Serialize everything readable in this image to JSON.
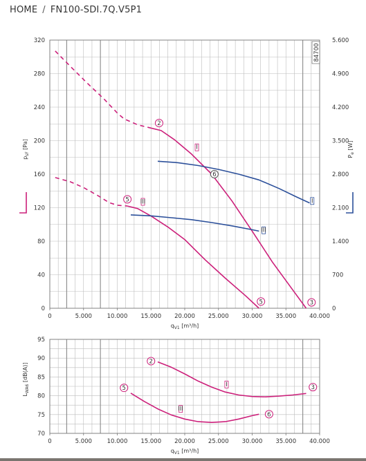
{
  "breadcrumb": {
    "home": "HOME",
    "separator": "/",
    "current": "FN100-SDI.7Q.V5P1"
  },
  "colors": {
    "pressure": "#cc1f7a",
    "power": "#2b4f9a",
    "grid": "#bcbcbc",
    "grid_heavy": "#8a8a8a"
  },
  "chart_data": [
    {
      "type": "line",
      "name": "pressure-power",
      "xlabel": "q",
      "xlabel_sub": "V1",
      "xlabel_unit": " [m³/h]",
      "ylabel": "p",
      "ylabel_sub": "sF",
      "ylabel_unit": " [Pa]",
      "y2label": "P",
      "y2label_sub": "e",
      "y2label_unit": " [W]",
      "xlim": [
        0,
        40000
      ],
      "ylim": [
        0,
        320
      ],
      "y2lim": [
        0,
        5600
      ],
      "x_ticks": [
        0,
        5000,
        10000,
        15000,
        20000,
        25000,
        30000,
        35000,
        40000
      ],
      "x_tick_labels": [
        "0",
        "5.000",
        "10.000",
        "15.000",
        "20.000",
        "25.000",
        "30.000",
        "35.000",
        "40.000"
      ],
      "y_ticks": [
        0,
        40,
        80,
        120,
        160,
        200,
        240,
        280,
        320
      ],
      "y_tick_labels": [
        "0",
        "40",
        "80",
        "120",
        "160",
        "200",
        "240",
        "280",
        "320"
      ],
      "y2_ticks": [
        0,
        700,
        1400,
        2100,
        2800,
        3500,
        4200,
        4900,
        5600
      ],
      "y2_tick_labels": [
        "0",
        "700",
        "1.400",
        "2.100",
        "2.800",
        "3.500",
        "4.200",
        "4.900",
        "5.600"
      ],
      "heavy_gridlines_x": [
        2500,
        7500,
        37500
      ],
      "rotated_label": "84700",
      "series": [
        {
          "kind": "pressure",
          "style": "dashed",
          "axis": "left",
          "points": [
            [
              800,
              307
            ],
            [
              3000,
              289
            ],
            [
              5500,
              269
            ],
            [
              8000,
              250
            ],
            [
              10000,
              233
            ],
            [
              11000,
              226
            ],
            [
              13000,
              219
            ],
            [
              15000,
              215
            ]
          ]
        },
        {
          "kind": "pressure",
          "style": "solid",
          "axis": "left",
          "points": [
            [
              15000,
              215
            ],
            [
              16500,
              212
            ],
            [
              18500,
              201
            ],
            [
              21000,
              184
            ],
            [
              24000,
              160
            ],
            [
              27000,
              128
            ],
            [
              30000,
              92
            ],
            [
              33000,
              55
            ],
            [
              36000,
              22
            ],
            [
              38000,
              0
            ]
          ]
        },
        {
          "kind": "pressure",
          "style": "dashed",
          "axis": "left",
          "points": [
            [
              800,
              156
            ],
            [
              3000,
              151
            ],
            [
              5000,
              144
            ],
            [
              7000,
              135
            ],
            [
              8800,
              126
            ],
            [
              10000,
              123
            ],
            [
              11500,
              122
            ]
          ]
        },
        {
          "kind": "pressure",
          "style": "solid",
          "axis": "left",
          "points": [
            [
              11500,
              122
            ],
            [
              13000,
              119
            ],
            [
              15000,
              110
            ],
            [
              17500,
              97
            ],
            [
              20000,
              82
            ],
            [
              23000,
              58
            ],
            [
              26000,
              36
            ],
            [
              29000,
              15
            ],
            [
              31000,
              0
            ]
          ]
        },
        {
          "kind": "power",
          "style": "solid",
          "axis": "right",
          "points": [
            [
              16000,
              3070
            ],
            [
              19000,
              3040
            ],
            [
              22000,
              2980
            ],
            [
              25000,
              2900
            ],
            [
              28000,
              2800
            ],
            [
              31000,
              2680
            ],
            [
              34000,
              2500
            ],
            [
              36500,
              2330
            ],
            [
              38500,
              2200
            ]
          ]
        },
        {
          "kind": "power",
          "style": "solid",
          "axis": "right",
          "points": [
            [
              12000,
              1950
            ],
            [
              15000,
              1930
            ],
            [
              18000,
              1890
            ],
            [
              21000,
              1850
            ],
            [
              24000,
              1790
            ],
            [
              27000,
              1720
            ],
            [
              30000,
              1640
            ],
            [
              31000,
              1610
            ]
          ]
        }
      ],
      "markers": [
        {
          "label": "2",
          "x": 16200,
          "y": 221,
          "color": "#cc1f7a",
          "shape": "circle"
        },
        {
          "label": "5",
          "x": 11500,
          "y": 130,
          "color": "#cc1f7a",
          "shape": "circle"
        },
        {
          "label": "6",
          "x": 24400,
          "y": 160,
          "color": "#555555",
          "shape": "circle"
        },
        {
          "label": "5",
          "x": 31300,
          "y": 8,
          "color": "#cc1f7a",
          "shape": "circle"
        },
        {
          "label": "3",
          "x": 38800,
          "y": 7,
          "color": "#cc1f7a",
          "shape": "circle"
        },
        {
          "label": "I",
          "x": 21800,
          "y": 192,
          "color": "#cc1f7a",
          "shape": "tick"
        },
        {
          "label": "III",
          "x": 13800,
          "y": 127,
          "color": "#cc1f7a",
          "shape": "tick"
        },
        {
          "label": "I",
          "x": 38900,
          "y": 128,
          "color": "#2b4f9a",
          "shape": "tick"
        },
        {
          "label": "III",
          "x": 31700,
          "y": 93,
          "color": "#2b4f9a",
          "shape": "tick"
        }
      ]
    },
    {
      "type": "line",
      "name": "sound-power",
      "xlabel": "q",
      "xlabel_sub": "V1",
      "xlabel_unit": " [m³/h]",
      "ylabel": "L",
      "ylabel_sub": "WA6",
      "ylabel_unit": " [dB(A)]",
      "xlim": [
        0,
        40000
      ],
      "ylim": [
        70,
        95
      ],
      "x_ticks": [
        0,
        5000,
        10000,
        15000,
        20000,
        25000,
        30000,
        35000,
        40000
      ],
      "x_tick_labels": [
        "0",
        "5.000",
        "10.000",
        "15.000",
        "20.000",
        "25.000",
        "30.000",
        "35.000",
        "40.000"
      ],
      "y_ticks": [
        70,
        75,
        80,
        85,
        90,
        95
      ],
      "y_tick_labels": [
        "70",
        "75",
        "80",
        "85",
        "90",
        "95"
      ],
      "heavy_gridlines_x": [
        2500,
        7500,
        37500
      ],
      "series": [
        {
          "kind": "sound",
          "style": "solid",
          "points": [
            [
              16000,
              89
            ],
            [
              18000,
              87.6
            ],
            [
              20000,
              85.8
            ],
            [
              22000,
              83.9
            ],
            [
              24000,
              82.3
            ],
            [
              26000,
              81.0
            ],
            [
              28000,
              80.2
            ],
            [
              30000,
              79.8
            ],
            [
              32000,
              79.7
            ],
            [
              34000,
              79.9
            ],
            [
              36000,
              80.2
            ],
            [
              38000,
              80.6
            ]
          ]
        },
        {
          "kind": "sound",
          "style": "solid",
          "points": [
            [
              12000,
              80.7
            ],
            [
              14000,
              78.5
            ],
            [
              16000,
              76.5
            ],
            [
              18000,
              74.9
            ],
            [
              20000,
              73.8
            ],
            [
              22000,
              73.1
            ],
            [
              24000,
              72.9
            ],
            [
              26000,
              73.1
            ],
            [
              28000,
              73.8
            ],
            [
              30000,
              74.7
            ],
            [
              31000,
              75.1
            ]
          ]
        }
      ],
      "markers": [
        {
          "label": "2",
          "x": 15000,
          "y": 89.2,
          "color": "#cc1f7a",
          "shape": "circle"
        },
        {
          "label": "5",
          "x": 11000,
          "y": 82.1,
          "color": "#cc1f7a",
          "shape": "circle"
        },
        {
          "label": "6",
          "x": 32500,
          "y": 75.1,
          "color": "#cc1f7a",
          "shape": "circle"
        },
        {
          "label": "3",
          "x": 39000,
          "y": 82.3,
          "color": "#cc1f7a",
          "shape": "circle"
        },
        {
          "label": "I",
          "x": 26200,
          "y": 83,
          "color": "#cc1f7a",
          "shape": "tick"
        },
        {
          "label": "III",
          "x": 19400,
          "y": 76.5,
          "color": "#cc1f7a",
          "shape": "tick"
        }
      ]
    }
  ]
}
